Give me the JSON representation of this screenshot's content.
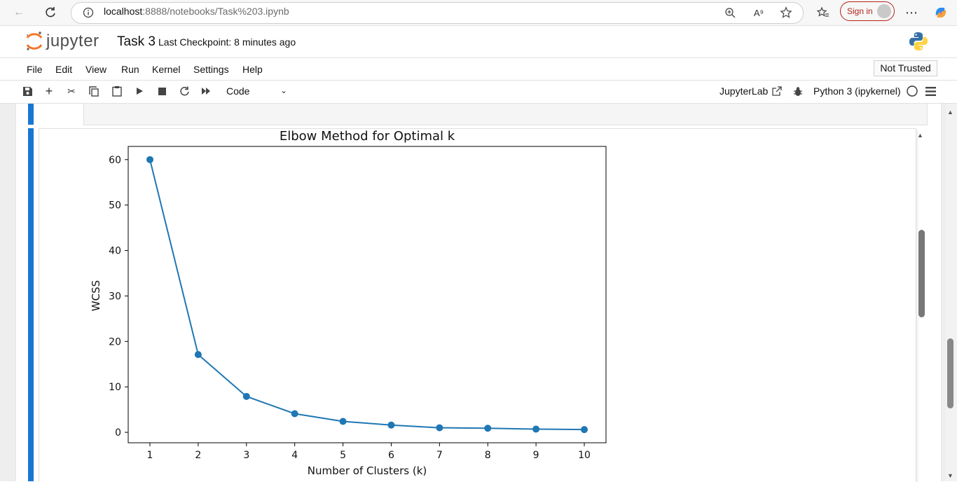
{
  "browser": {
    "url_host": "localhost",
    "url_path": ":8888/notebooks/Task%203.ipynb",
    "sign_in": "Sign in"
  },
  "header": {
    "logo_text": "jupyter",
    "notebook_title": "Task 3",
    "checkpoint": "Last Checkpoint: 8 minutes ago"
  },
  "menu": [
    "File",
    "Edit",
    "View",
    "Run",
    "Kernel",
    "Settings",
    "Help"
  ],
  "trust_status": "Not Trusted",
  "toolbar": {
    "cell_type": "Code",
    "jupyterlab_label": "JupyterLab",
    "kernel_name": "Python 3 (ipykernel)"
  },
  "colors": {
    "series": "#1f77b4",
    "cell_selected": "#1976d2",
    "signin": "#b42318"
  },
  "chart_data": {
    "type": "line",
    "title": "Elbow Method for Optimal k",
    "xlabel": "Number of Clusters (k)",
    "ylabel": "WCSS",
    "x": [
      1,
      2,
      3,
      4,
      5,
      6,
      7,
      8,
      9,
      10
    ],
    "series": [
      {
        "values": [
          60.0,
          17.1,
          7.9,
          4.1,
          2.4,
          1.6,
          1.0,
          0.9,
          0.7,
          0.6
        ]
      }
    ],
    "xticks": [
      "1",
      "2",
      "3",
      "4",
      "5",
      "6",
      "7",
      "8",
      "9",
      "10"
    ],
    "yticks": [
      "0",
      "10",
      "20",
      "30",
      "40",
      "50",
      "60"
    ],
    "xlim": [
      0.55,
      10.45
    ],
    "ylim": [
      -2.3,
      62.9
    ],
    "marker": "circle",
    "grid": false
  }
}
